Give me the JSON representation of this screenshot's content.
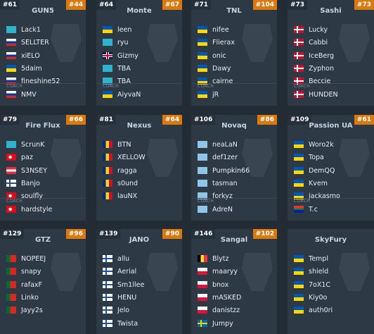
{
  "teams": [
    {
      "rank": "#61",
      "name": "GUN5",
      "points": "#44",
      "players": [
        "Lack1",
        "SELLTER",
        "xiELO",
        "5daim",
        "fineshine52"
      ],
      "coach_label": "COACH",
      "coach": "NMV"
    },
    {
      "rank": "#64",
      "name": "Monte",
      "points": "#67",
      "players": [
        "leen",
        "ryu",
        "Gizmy",
        "TBA",
        "TBA"
      ],
      "coach_label": "COACH",
      "coach": "AiyvaN"
    },
    {
      "rank": "#71",
      "name": "TNL",
      "points": "#104",
      "players": [
        "nifee",
        "Flierax",
        "onic",
        "Dawy",
        "cairne"
      ],
      "coach_label": "COACH",
      "coach": "jR"
    },
    {
      "rank": "#73",
      "name": "Sashi",
      "points": "#73",
      "players": [
        "Lucky",
        "Cabbi",
        "IceBerg",
        "Zyphon",
        "Beccie"
      ],
      "coach_label": "COACH",
      "coach": "HUNDEN"
    },
    {
      "rank": "#79",
      "name": "Fire Flux",
      "points": "#66",
      "players": [
        "ScrunK",
        "paz",
        "S3NSEY",
        "Banjo",
        "soulfly"
      ],
      "coach_label": "COACH",
      "coach": "hardstyle"
    },
    {
      "rank": "#81",
      "name": "Nexus",
      "points": "#64",
      "players": [
        "BTN",
        "XELLOW",
        "ragga",
        "s0und",
        "lauNX"
      ]
    },
    {
      "rank": "#106",
      "name": "Novaq",
      "points": "#86",
      "players": [
        "neaLaN",
        "def1zer",
        "Pumpkin66",
        "tasman",
        "forkyz"
      ],
      "coach_label": "COACH",
      "coach": "AdreN"
    },
    {
      "rank": "#109",
      "name": "Passion UA",
      "points": "#61",
      "players": [
        "Woro2k",
        "Topa",
        "DemQQ",
        "Kvem",
        "jackasmo"
      ],
      "coach_label": "COACH",
      "coach": "T.c"
    },
    {
      "rank": "#129",
      "name": "GTZ",
      "points": "#96",
      "players": [
        "NOPEEJ",
        "snapy",
        "rafaxF",
        "Linko",
        "Jayy2s"
      ]
    },
    {
      "rank": "#139",
      "name": "JANO",
      "points": "#90",
      "players": [
        "allu",
        "Aerial",
        "Sm1llee",
        "HENU",
        "Jelo"
      ],
      "coach": "Twista"
    },
    {
      "rank": "#146",
      "name": "Sangal",
      "points": "#102",
      "players": [
        "Blytz",
        "maaryy",
        "bnox",
        "mASKED",
        "danistzz"
      ],
      "coach": "Jumpy"
    },
    {
      "name": "SkyFury",
      "players": [
        "Templ",
        "shield",
        "7oX1C",
        "Kiy0o",
        "auth0ri"
      ]
    }
  ]
}
